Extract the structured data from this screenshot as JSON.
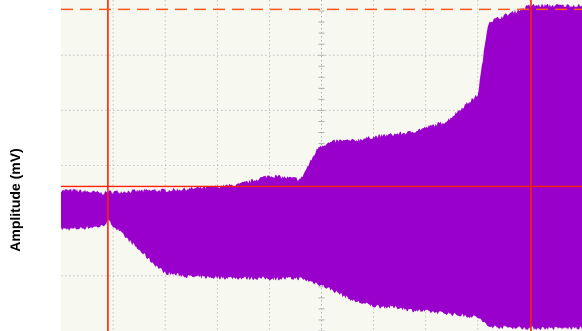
{
  "chart_data": {
    "type": "area",
    "title": "",
    "xlabel": "",
    "ylabel": "Amplitude (mV)",
    "grid": true,
    "colors": {
      "signal": "#9900cc",
      "cursor": "#ff2200",
      "cursor_dashed": "#ff5a1e",
      "grid": "#b8b8b8",
      "plot_bg": "#f7f8f0"
    },
    "envelope": {
      "x": [
        0,
        0.25,
        0.8,
        0.9,
        1.8,
        2.0,
        2.5,
        3.4,
        4.0,
        4.6,
        4.95,
        5.3,
        5.6,
        6.0,
        6.5,
        6.7,
        7.4,
        7.7,
        8.0,
        8.2,
        9.0,
        10.0
      ],
      "upper": [
        2.55,
        2.55,
        2.5,
        2.52,
        2.55,
        2.55,
        2.58,
        2.65,
        2.82,
        2.75,
        3.35,
        3.45,
        3.45,
        3.52,
        3.58,
        3.6,
        3.8,
        4.05,
        4.28,
        5.6,
        5.9,
        5.9
      ],
      "lower": [
        1.85,
        1.85,
        1.9,
        2.0,
        1.2,
        1.05,
        0.98,
        0.96,
        0.95,
        0.95,
        0.85,
        0.7,
        0.55,
        0.45,
        0.42,
        0.38,
        0.32,
        0.28,
        0.25,
        0.08,
        0.05,
        0.05
      ]
    },
    "xlim": [
      0,
      10
    ],
    "ylim": [
      0,
      6
    ],
    "cursors": {
      "vertical": [
        0.9,
        9.02
      ],
      "horizontal_solid": 2.62,
      "horizontal_dashed": 5.83
    }
  }
}
